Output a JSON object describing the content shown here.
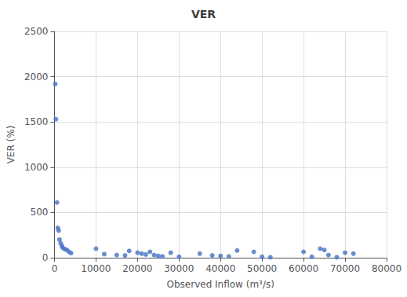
{
  "chart_data": {
    "type": "scatter",
    "title": "VER",
    "xlabel": "Observed Inflow (m³/s)",
    "ylabel": "VER (%)",
    "x": [
      200,
      350,
      600,
      800,
      1000,
      1200,
      1500,
      1800,
      2000,
      2500,
      3000,
      3500,
      4000,
      10000,
      12000,
      15000,
      17000,
      18000,
      20000,
      21000,
      22000,
      23000,
      24000,
      25000,
      26000,
      28000,
      30000,
      35000,
      38000,
      40000,
      42000,
      44000,
      48000,
      50000,
      52000,
      60000,
      62000,
      64000,
      65000,
      66000,
      68000,
      70000,
      72000
    ],
    "values": [
      1920,
      1530,
      610,
      330,
      300,
      200,
      160,
      130,
      110,
      95,
      85,
      65,
      50,
      100,
      40,
      30,
      25,
      75,
      55,
      45,
      35,
      65,
      30,
      20,
      15,
      55,
      10,
      45,
      25,
      20,
      15,
      80,
      65,
      10,
      5,
      65,
      10,
      100,
      85,
      30,
      5,
      55,
      45
    ],
    "color": "#4472C4",
    "xlim": [
      0,
      80000
    ],
    "xticks": [
      0,
      10000,
      20000,
      30000,
      40000,
      50000,
      60000,
      70000,
      80000
    ],
    "ylim": [
      0,
      2500
    ],
    "yticks": [
      0,
      500,
      1000,
      1500,
      2000,
      2500
    ],
    "grid": true
  }
}
